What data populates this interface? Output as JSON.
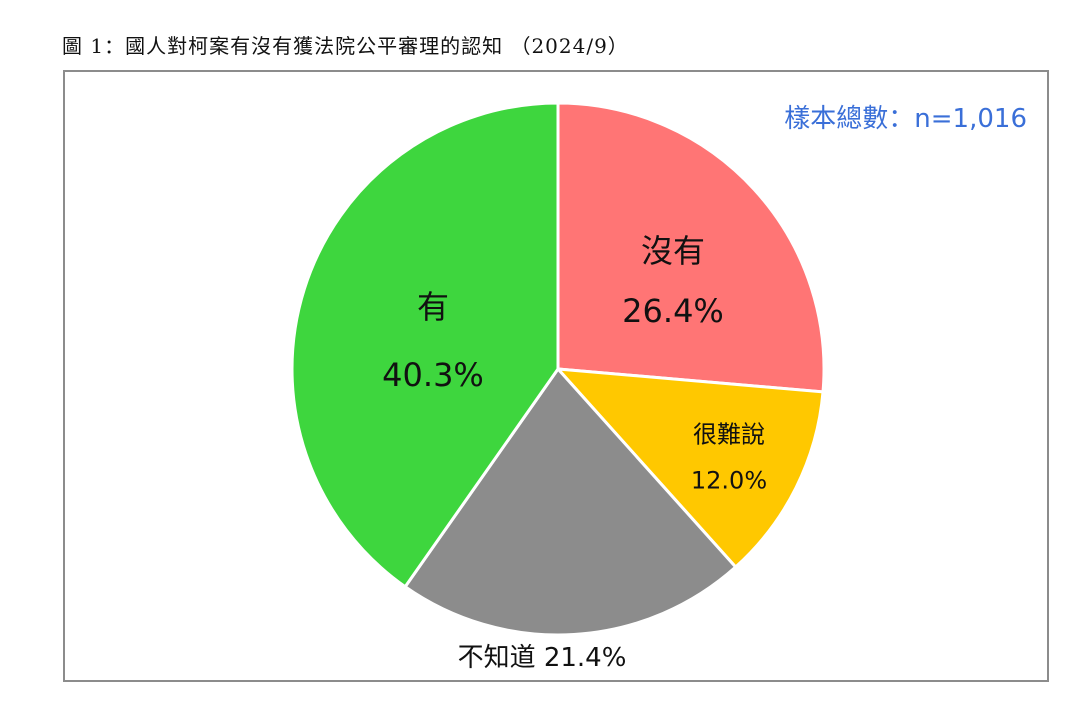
{
  "figure": {
    "title": "圖 1：國人對柯案有沒有獲法院公平審理的認知 （2024/9）"
  },
  "sample": {
    "text": "樣本總數：n=1,016"
  },
  "colors": {
    "sample_text": "#3a6fd8",
    "border": "#8c8c8c"
  },
  "chart_data": {
    "type": "pie",
    "title": "",
    "start": "12 o'clock, clockwise",
    "slices": [
      {
        "label": "沒有",
        "value": 26.4,
        "value_text": "26.4%",
        "color": "#ff7575"
      },
      {
        "label": "很難說",
        "value": 12.0,
        "value_text": "12.0%",
        "color": "#ffc800"
      },
      {
        "label": "不知道",
        "value": 21.4,
        "value_text": "21.4%",
        "color": "#8c8c8c"
      },
      {
        "label": "有",
        "value": 40.3,
        "value_text": "40.3%",
        "color": "#3ed63e"
      }
    ]
  }
}
